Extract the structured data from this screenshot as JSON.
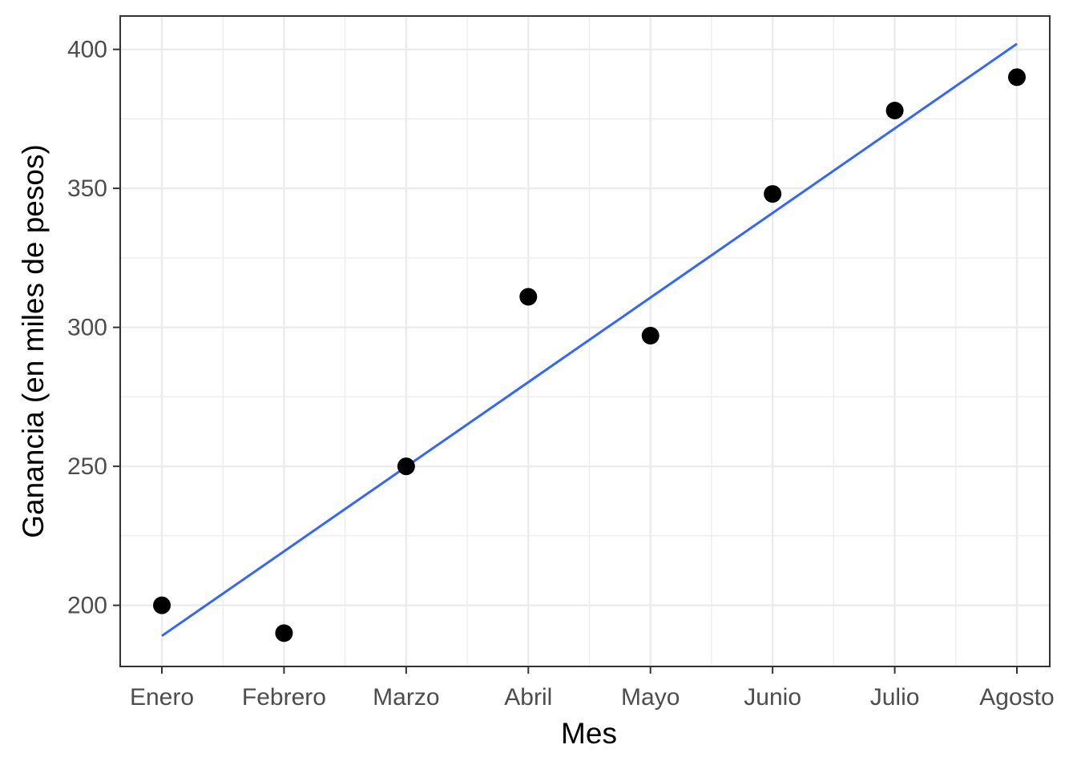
{
  "chart_data": {
    "type": "scatter",
    "xlabel": "Mes",
    "ylabel": "Ganancia (en miles de pesos)",
    "categories": [
      "Enero",
      "Febrero",
      "Marzo",
      "Abril",
      "Mayo",
      "Junio",
      "Julio",
      "Agosto"
    ],
    "values": [
      200,
      190,
      250,
      311,
      297,
      348,
      378,
      390
    ],
    "ylim": [
      178,
      412
    ],
    "yticks": [
      200,
      250,
      300,
      350,
      400
    ],
    "trend_line": {
      "start": 189,
      "end": 402,
      "color": "#3366ff"
    },
    "point_color": "#000000",
    "grid": true
  }
}
